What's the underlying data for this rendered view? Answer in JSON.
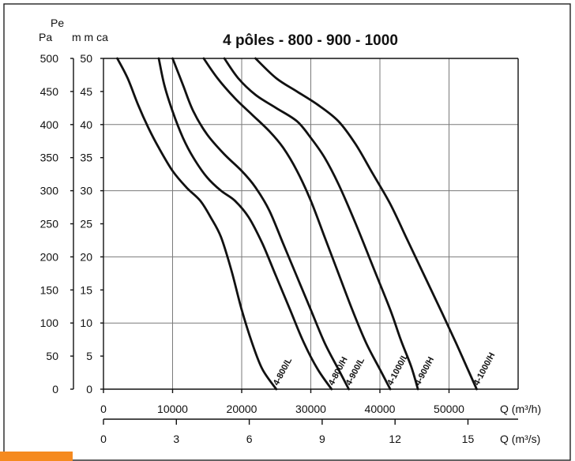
{
  "chart_data": {
    "type": "line",
    "title": "4 pôles - 800 - 900 - 1000",
    "y_axis_name": "Pe",
    "y_units": [
      "Pa",
      "m m ca"
    ],
    "y_pa_ticks": [
      "0",
      "50",
      "100",
      "150",
      "200",
      "250",
      "300",
      "350",
      "400",
      "450",
      "500"
    ],
    "y_mmca_ticks": [
      "0",
      "5",
      "10",
      "15",
      "20",
      "25",
      "30",
      "35",
      "40",
      "45",
      "50"
    ],
    "x_m3h_ticks": [
      "0",
      "10000",
      "20000",
      "30000",
      "40000",
      "50000"
    ],
    "x_m3h_label": "Q (m³/h)",
    "x_m3s_ticks": [
      "0",
      "3",
      "6",
      "9",
      "12",
      "15"
    ],
    "x_m3s_label": "Q (m³/s)",
    "xlim": [
      0,
      60000
    ],
    "ylim": [
      0,
      50
    ],
    "grid": true,
    "series": [
      {
        "name": "4-800/L",
        "points": [
          [
            2000,
            50
          ],
          [
            3500,
            47
          ],
          [
            5000,
            43
          ],
          [
            6500,
            39.5
          ],
          [
            8000,
            36.5
          ],
          [
            10000,
            33
          ],
          [
            12000,
            30.5
          ],
          [
            14000,
            28.5
          ],
          [
            15500,
            26
          ],
          [
            17000,
            23
          ],
          [
            18500,
            18
          ],
          [
            20000,
            12
          ],
          [
            21500,
            7
          ],
          [
            23000,
            3
          ],
          [
            25000,
            0
          ]
        ]
      },
      {
        "name": "4-800/H",
        "points": [
          [
            8000,
            50
          ],
          [
            8800,
            46
          ],
          [
            10000,
            42
          ],
          [
            11500,
            38
          ],
          [
            13000,
            35
          ],
          [
            15000,
            32
          ],
          [
            17000,
            30
          ],
          [
            19000,
            28.5
          ],
          [
            21000,
            26
          ],
          [
            23000,
            22
          ],
          [
            25000,
            17
          ],
          [
            27000,
            12
          ],
          [
            29000,
            7
          ],
          [
            31000,
            3
          ],
          [
            33000,
            0
          ]
        ]
      },
      {
        "name": "4-900/L",
        "points": [
          [
            10000,
            50
          ],
          [
            11500,
            46
          ],
          [
            13000,
            42
          ],
          [
            15000,
            38.5
          ],
          [
            17500,
            35.5
          ],
          [
            20000,
            33
          ],
          [
            22000,
            30.5
          ],
          [
            24000,
            27
          ],
          [
            26000,
            22
          ],
          [
            28000,
            17
          ],
          [
            30000,
            12
          ],
          [
            32000,
            7
          ],
          [
            34000,
            3
          ],
          [
            35500,
            0
          ]
        ]
      },
      {
        "name": "4-1000/L",
        "points": [
          [
            14500,
            50
          ],
          [
            16500,
            47
          ],
          [
            19000,
            44
          ],
          [
            21500,
            41.5
          ],
          [
            24000,
            39
          ],
          [
            26000,
            36.5
          ],
          [
            28000,
            33
          ],
          [
            30000,
            28.5
          ],
          [
            32000,
            23
          ],
          [
            34000,
            17.5
          ],
          [
            36000,
            12
          ],
          [
            38000,
            7
          ],
          [
            40000,
            3
          ],
          [
            41500,
            0
          ]
        ]
      },
      {
        "name": "4-900/H",
        "points": [
          [
            17500,
            50
          ],
          [
            19500,
            47
          ],
          [
            22000,
            44.5
          ],
          [
            25000,
            42.5
          ],
          [
            28000,
            40.5
          ],
          [
            30000,
            38
          ],
          [
            32000,
            35
          ],
          [
            34000,
            31
          ],
          [
            36500,
            25
          ],
          [
            39000,
            18.5
          ],
          [
            41500,
            12
          ],
          [
            43000,
            7.5
          ],
          [
            44500,
            3.5
          ],
          [
            45500,
            0
          ]
        ]
      },
      {
        "name": "4-1000/H",
        "points": [
          [
            22000,
            50
          ],
          [
            25000,
            47
          ],
          [
            28000,
            45
          ],
          [
            31000,
            43
          ],
          [
            34000,
            40.5
          ],
          [
            36500,
            37
          ],
          [
            39000,
            32.5
          ],
          [
            41500,
            28
          ],
          [
            44000,
            22.5
          ],
          [
            46500,
            17
          ],
          [
            49000,
            11.5
          ],
          [
            51000,
            7
          ],
          [
            52500,
            3.5
          ],
          [
            54000,
            0
          ]
        ]
      }
    ]
  }
}
